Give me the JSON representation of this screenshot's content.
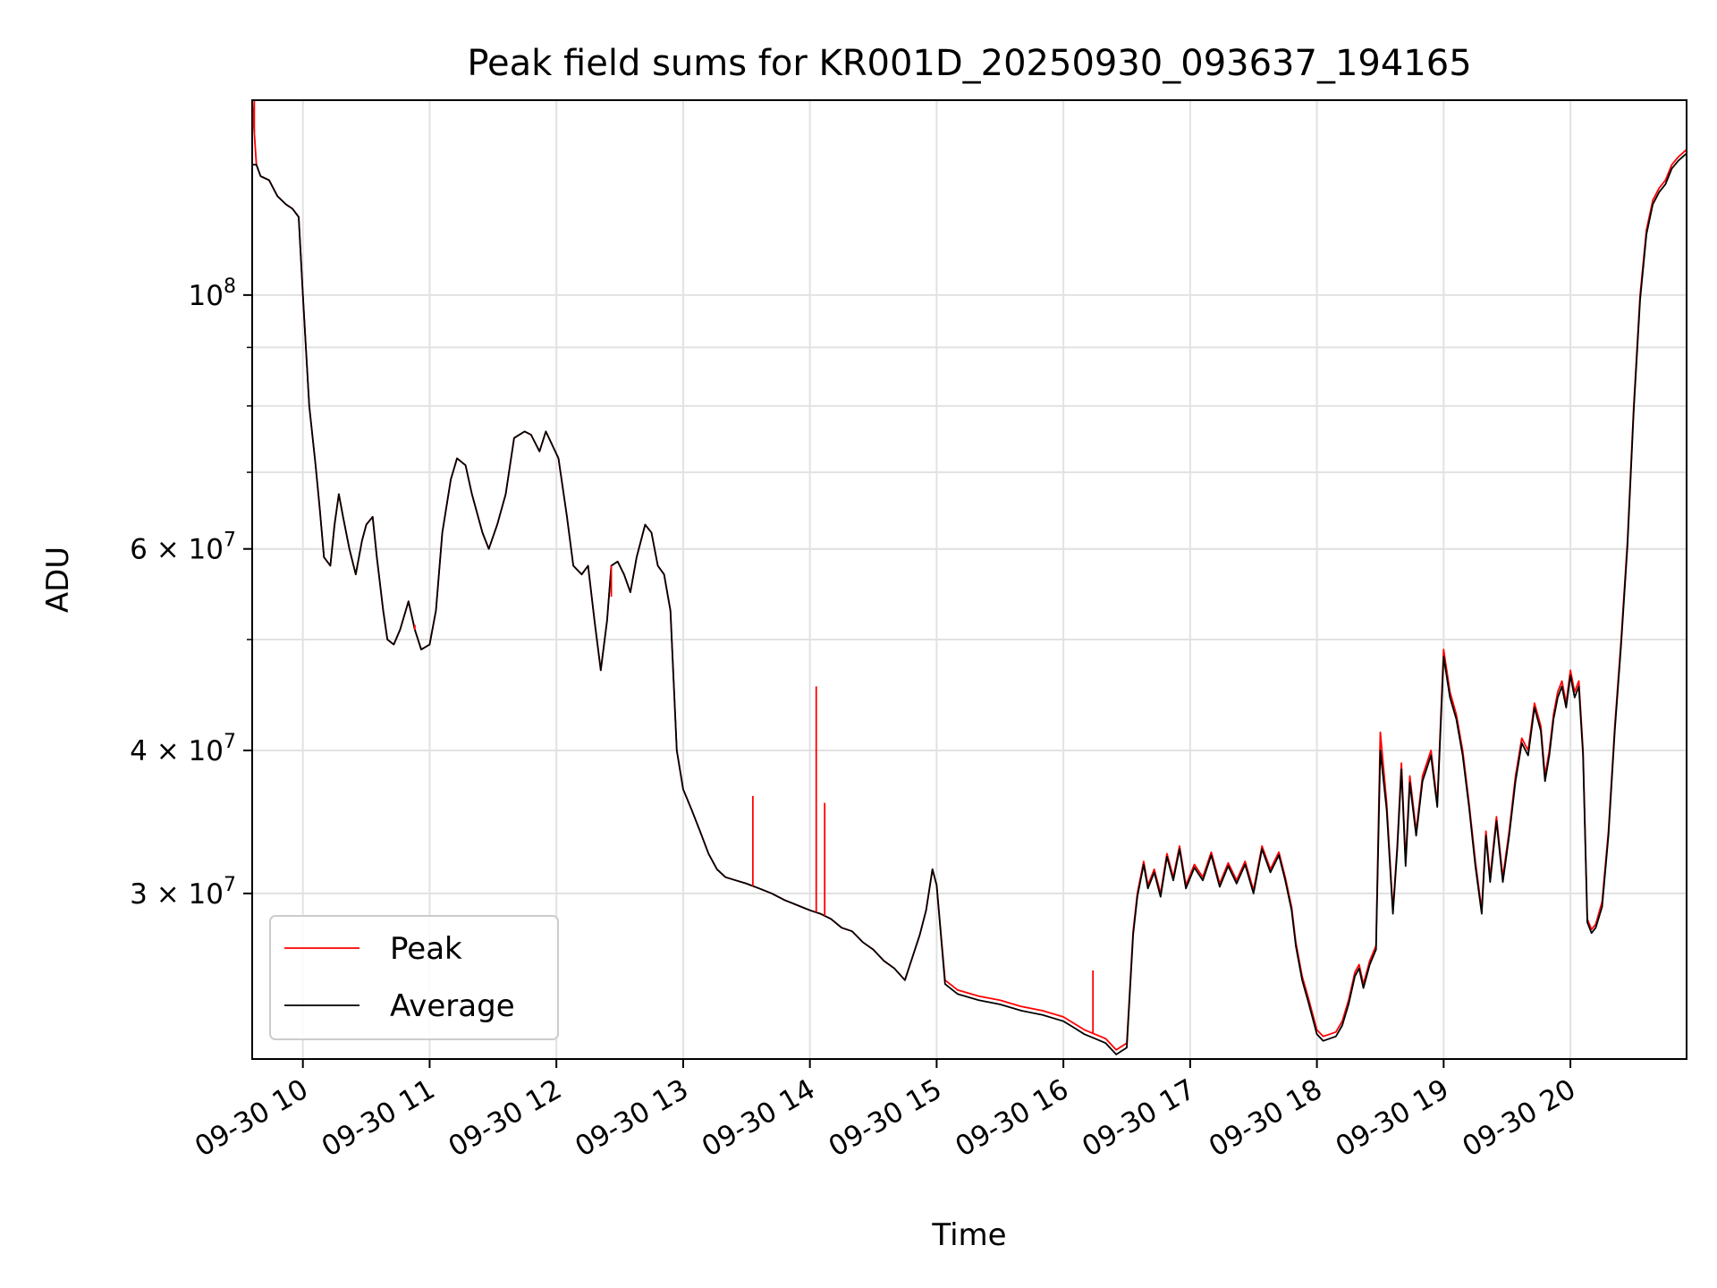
{
  "chart_data": {
    "type": "line",
    "title": "Peak field sums for KR001D_20250930_093637_194165",
    "xlabel": "Time",
    "ylabel": "ADU",
    "yscale": "log",
    "xlim": [
      "2025-09-30 09:36",
      "2025-09-30 20:55"
    ],
    "ylim": [
      21500000,
      148000000
    ],
    "grid": true,
    "legend": {
      "location": "lower-left",
      "entries": [
        "Peak",
        "Average"
      ]
    },
    "colors": {
      "Peak": "#ff0000",
      "Average": "#000000"
    },
    "x_ticks": [
      "09-30 10",
      "09-30 11",
      "09-30 12",
      "09-30 13",
      "09-30 14",
      "09-30 15",
      "09-30 16",
      "09-30 17",
      "09-30 18",
      "09-30 19",
      "09-30 20"
    ],
    "y_ticks": [
      {
        "value": 30000000,
        "mantissa": "3",
        "exponent": "7"
      },
      {
        "value": 40000000,
        "mantissa": "4",
        "exponent": "7"
      },
      {
        "value": 60000000,
        "mantissa": "6",
        "exponent": "7"
      },
      {
        "value": 100000000,
        "mantissa": "",
        "exponent": "8"
      }
    ],
    "x": [
      "09:36",
      "09:38",
      "09:40",
      "09:44",
      "09:48",
      "09:52",
      "09:55",
      "09:58",
      "10:00",
      "10:03",
      "10:06",
      "10:08",
      "10:10",
      "10:13",
      "10:15",
      "10:17",
      "10:19",
      "10:22",
      "10:25",
      "10:28",
      "10:30",
      "10:33",
      "10:35",
      "10:38",
      "10:40",
      "10:43",
      "10:46",
      "10:50",
      "10:53",
      "10:56",
      "11:00",
      "11:03",
      "11:06",
      "11:10",
      "11:13",
      "11:17",
      "11:20",
      "11:25",
      "11:28",
      "11:32",
      "11:36",
      "11:40",
      "11:45",
      "11:48",
      "11:52",
      "11:55",
      "11:58",
      "12:01",
      "12:05",
      "12:08",
      "12:12",
      "12:15",
      "12:18",
      "12:21",
      "12:24",
      "12:26",
      "12:29",
      "12:32",
      "12:35",
      "12:38",
      "12:42",
      "12:45",
      "12:48",
      "12:51",
      "12:54",
      "12:57",
      "13:00",
      "13:04",
      "13:08",
      "13:12",
      "13:16",
      "13:20",
      "13:25",
      "13:30",
      "13:36",
      "13:42",
      "13:48",
      "13:54",
      "14:00",
      "14:05",
      "14:10",
      "14:15",
      "14:20",
      "14:25",
      "14:30",
      "14:35",
      "14:40",
      "14:45",
      "14:48",
      "14:52",
      "14:55",
      "14:58",
      "15:00",
      "15:04",
      "15:10",
      "15:20",
      "15:30",
      "15:40",
      "15:50",
      "16:00",
      "16:05",
      "16:10",
      "16:15",
      "16:20",
      "16:25",
      "16:30",
      "16:33",
      "16:35",
      "16:38",
      "16:40",
      "16:43",
      "16:46",
      "16:49",
      "16:52",
      "16:55",
      "16:58",
      "17:02",
      "17:06",
      "17:10",
      "17:14",
      "17:18",
      "17:22",
      "17:26",
      "17:30",
      "17:34",
      "17:38",
      "17:42",
      "17:45",
      "17:48",
      "17:50",
      "17:53",
      "17:56",
      "18:00",
      "18:03",
      "18:06",
      "18:09",
      "18:12",
      "18:15",
      "18:18",
      "18:20",
      "18:22",
      "18:25",
      "18:28",
      "18:30",
      "18:33",
      "18:36",
      "18:38",
      "18:40",
      "18:42",
      "18:44",
      "18:47",
      "18:50",
      "18:54",
      "18:57",
      "19:00",
      "19:03",
      "19:06",
      "19:09",
      "19:12",
      "19:15",
      "19:18",
      "19:20",
      "19:22",
      "19:25",
      "19:28",
      "19:31",
      "19:34",
      "19:37",
      "19:40",
      "19:43",
      "19:46",
      "19:48",
      "19:50",
      "19:52",
      "19:54",
      "19:56",
      "19:58",
      "20:00",
      "20:02",
      "20:04",
      "20:06",
      "20:08",
      "20:10",
      "20:12",
      "20:15",
      "20:18",
      "20:21",
      "20:24",
      "20:27",
      "20:30",
      "20:33",
      "20:36",
      "20:39",
      "20:42",
      "20:45",
      "20:48",
      "20:51",
      "20:55"
    ],
    "series": [
      {
        "name": "Peak",
        "values": [
          148000000,
          130000000,
          127000000,
          126000000,
          122000000,
          120000000,
          119000000,
          117000000,
          100000000,
          80000000,
          71000000,
          65000000,
          59000000,
          58000000,
          63000000,
          67000000,
          64000000,
          60000000,
          57000000,
          61000000,
          63000000,
          64000000,
          59000000,
          53000000,
          50000000,
          49500000,
          51000000,
          54000000,
          51000000,
          49000000,
          49500000,
          53000000,
          62000000,
          69000000,
          72000000,
          71000000,
          67000000,
          62000000,
          60000000,
          63000000,
          67000000,
          75000000,
          76000000,
          75500000,
          73000000,
          76000000,
          74000000,
          72000000,
          64000000,
          58000000,
          57000000,
          58000000,
          52000000,
          47000000,
          52000000,
          58000000,
          58500000,
          57000000,
          55000000,
          59000000,
          63000000,
          62000000,
          58000000,
          57000000,
          53000000,
          40000000,
          37000000,
          35500000,
          34000000,
          32500000,
          31500000,
          31000000,
          30800000,
          30600000,
          30300000,
          30000000,
          29600000,
          29300000,
          29000000,
          28800000,
          28500000,
          28000000,
          27800000,
          27200000,
          26800000,
          26200000,
          25800000,
          25200000,
          26200000,
          27600000,
          29000000,
          31500000,
          30500000,
          25200000,
          24700000,
          24400000,
          24200000,
          23900000,
          23700000,
          23400000,
          23100000,
          22800000,
          22600000,
          22400000,
          21900000,
          22200000,
          27800000,
          30000000,
          32000000,
          30500000,
          31500000,
          30000000,
          32500000,
          31000000,
          33000000,
          30500000,
          31800000,
          31000000,
          32600000,
          30600000,
          31900000,
          30800000,
          32000000,
          30200000,
          33000000,
          31500000,
          32600000,
          31000000,
          29200000,
          27200000,
          25400000,
          24300000,
          22800000,
          22500000,
          22600000,
          22700000,
          23200000,
          24200000,
          25600000,
          26000000,
          25000000,
          26200000,
          27000000,
          41500000,
          36000000,
          29000000,
          33000000,
          39000000,
          32000000,
          38000000,
          34000000,
          38000000,
          40000000,
          36000000,
          49000000,
          45000000,
          43000000,
          40000000,
          36000000,
          32000000,
          29000000,
          34000000,
          31000000,
          35000000,
          31000000,
          34000000,
          38000000,
          41000000,
          40000000,
          44000000,
          42000000,
          38000000,
          40000000,
          43000000,
          45000000,
          46000000,
          44000000,
          47000000,
          45000000,
          46000000,
          40000000,
          28500000,
          27900000,
          28200000,
          29500000,
          34000000,
          42000000,
          50000000,
          61000000,
          80000000,
          100000000,
          114000000,
          121000000,
          124000000,
          126000000,
          130000000,
          132000000,
          134000000
        ]
      },
      {
        "name": "Average",
        "values": [
          130000000,
          130000000,
          127000000,
          126000000,
          122000000,
          120000000,
          119000000,
          117000000,
          100000000,
          80000000,
          71000000,
          65000000,
          59000000,
          58000000,
          63000000,
          67000000,
          64000000,
          60000000,
          57000000,
          61000000,
          63000000,
          64000000,
          59000000,
          53000000,
          50000000,
          49500000,
          51000000,
          54000000,
          51000000,
          49000000,
          49500000,
          53000000,
          62000000,
          69000000,
          72000000,
          71000000,
          67000000,
          62000000,
          60000000,
          63000000,
          67000000,
          75000000,
          76000000,
          75500000,
          73000000,
          76000000,
          74000000,
          72000000,
          64000000,
          58000000,
          57000000,
          58000000,
          52000000,
          47000000,
          52000000,
          58000000,
          58500000,
          57000000,
          55000000,
          59000000,
          63000000,
          62000000,
          58000000,
          57000000,
          53000000,
          40000000,
          37000000,
          35500000,
          34000000,
          32500000,
          31500000,
          31000000,
          30800000,
          30600000,
          30300000,
          30000000,
          29600000,
          29300000,
          29000000,
          28800000,
          28500000,
          28000000,
          27800000,
          27200000,
          26800000,
          26200000,
          25800000,
          25200000,
          26200000,
          27600000,
          29000000,
          31500000,
          30500000,
          25000000,
          24500000,
          24200000,
          24000000,
          23700000,
          23500000,
          23200000,
          22900000,
          22600000,
          22400000,
          22200000,
          21700000,
          22000000,
          27600000,
          29800000,
          31800000,
          30300000,
          31300000,
          29800000,
          32300000,
          30800000,
          32800000,
          30300000,
          31600000,
          30800000,
          32400000,
          30400000,
          31700000,
          30600000,
          31800000,
          30000000,
          32800000,
          31300000,
          32400000,
          30800000,
          29000000,
          27000000,
          25200000,
          24100000,
          22600000,
          22300000,
          22400000,
          22500000,
          23000000,
          24000000,
          25400000,
          25800000,
          24800000,
          26000000,
          26800000,
          40000000,
          35500000,
          28800000,
          32700000,
          38500000,
          31700000,
          37500000,
          33700000,
          37600000,
          39600000,
          35700000,
          48300000,
          44500000,
          42600000,
          39600000,
          35700000,
          31700000,
          28800000,
          33700000,
          30700000,
          34700000,
          30700000,
          33700000,
          37600000,
          40600000,
          39600000,
          43600000,
          41600000,
          37600000,
          39600000,
          42600000,
          44500000,
          45500000,
          43600000,
          46500000,
          44500000,
          45500000,
          39600000,
          28300000,
          27700000,
          28000000,
          29200000,
          33700000,
          41600000,
          49500000,
          60400000,
          79300000,
          99000000,
          113000000,
          120000000,
          123000000,
          125000000,
          129000000,
          131000000,
          133000000
        ]
      }
    ],
    "spikes": [
      {
        "series": "Peak",
        "x": "09:37",
        "value": 148000000
      },
      {
        "series": "Peak",
        "x": "10:53",
        "value": 51500000
      },
      {
        "series": "Peak",
        "x": "12:26",
        "value": 54500000
      },
      {
        "series": "Peak",
        "x": "13:33",
        "value": 36500000
      },
      {
        "series": "Peak",
        "x": "14:03",
        "value": 45500000
      },
      {
        "series": "Peak",
        "x": "14:07",
        "value": 36000000
      },
      {
        "series": "Peak",
        "x": "16:14",
        "value": 25700000
      }
    ]
  }
}
